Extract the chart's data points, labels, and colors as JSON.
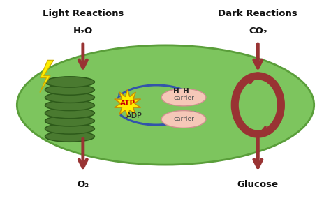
{
  "bg_color": "#ffffff",
  "chloroplast_color": "#7dc55e",
  "chloroplast_border": "#5a9e3a",
  "thylakoid_color": "#4a7a30",
  "thylakoid_border": "#2d5a1a",
  "arrow_color": "#993333",
  "cycle_arrow_color": "#3355aa",
  "dark_reaction_color": "#993333",
  "carrier_color": "#f5c8b8",
  "carrier_border": "#d09090",
  "atp_star_color": "#ffee00",
  "atp_star_border": "#cc8800",
  "atp_text_color": "#cc0000",
  "lightning_color": "#ffee00",
  "lightning_border": "#ccaa00",
  "title_color": "#111111",
  "light_label": "Light Reactions",
  "dark_label": "Dark Reactions",
  "h2o_label": "H₂O",
  "co2_label": "CO₂",
  "o2_label": "O₂",
  "glucose_label": "Glucose",
  "atp_label": "ATP",
  "adp_label": "ADP",
  "carrier_label": "carrier",
  "h_label": "H"
}
